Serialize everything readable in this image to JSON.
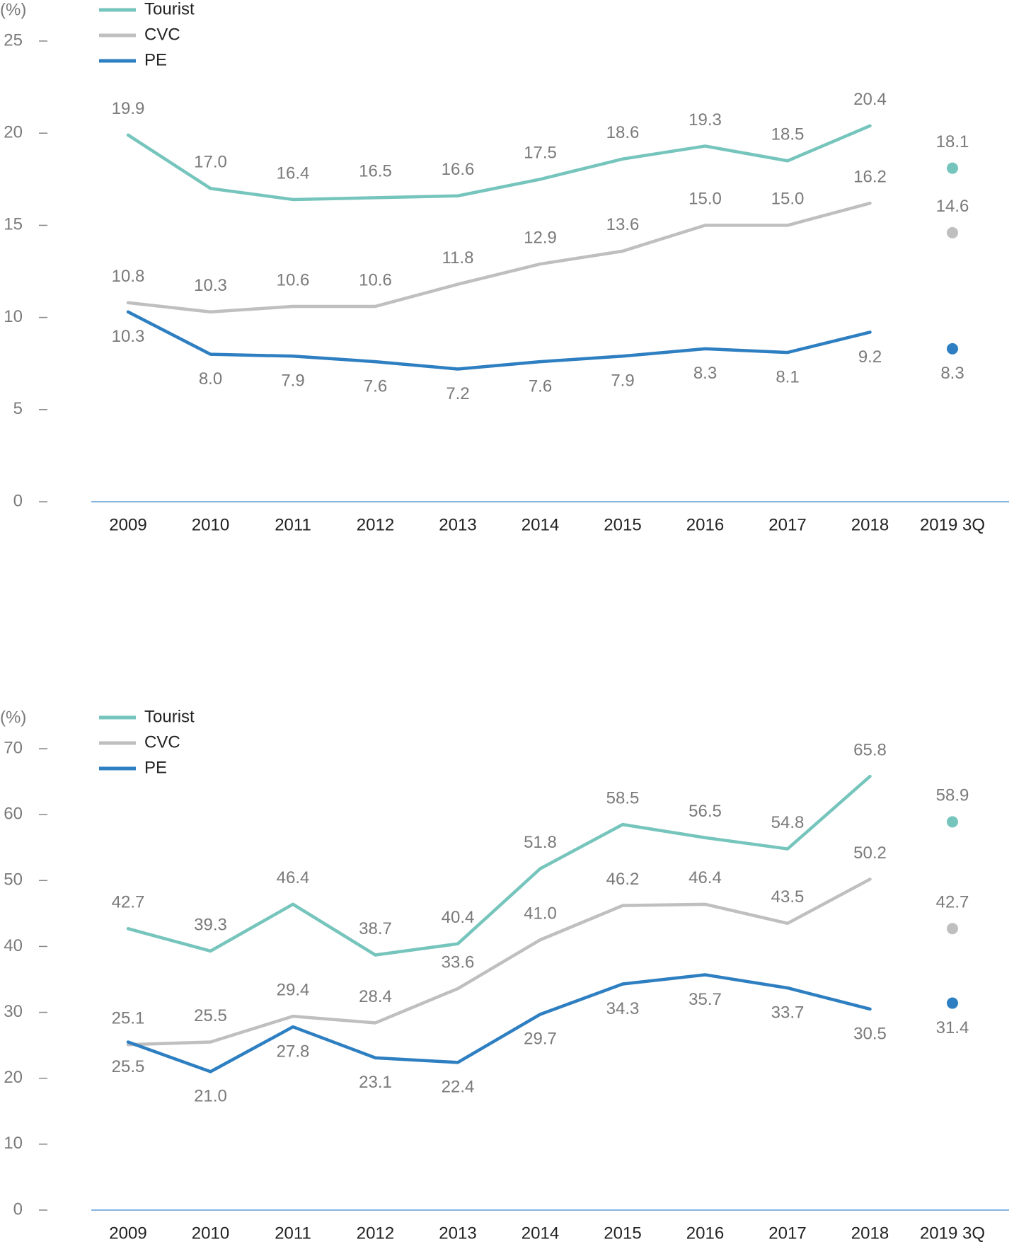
{
  "chart_data": [
    {
      "type": "line",
      "y_label": "(%)",
      "categories": [
        "2009",
        "2010",
        "2011",
        "2012",
        "2013",
        "2014",
        "2015",
        "2016",
        "2017",
        "2018",
        "2019 3Q"
      ],
      "detached_last_point": true,
      "ylim": [
        0,
        25
      ],
      "yticks": [
        0,
        5,
        10,
        15,
        20,
        25
      ],
      "series": [
        {
          "name": "Tourist",
          "color": "#76c5bd",
          "label_side": "above",
          "values": [
            19.9,
            17.0,
            16.4,
            16.5,
            16.6,
            17.5,
            18.6,
            19.3,
            18.5,
            20.4,
            18.1
          ],
          "value_labels": [
            "19.9",
            "17.0",
            "16.4",
            "16.5",
            "16.6",
            "17.5",
            "18.6",
            "19.3",
            "18.5",
            "20.4",
            "18.1"
          ]
        },
        {
          "name": "CVC",
          "color": "#bfbfbf",
          "label_side": "above",
          "values": [
            10.8,
            10.3,
            10.6,
            10.6,
            11.8,
            12.9,
            13.6,
            15.0,
            15.0,
            16.2,
            14.6
          ],
          "value_labels": [
            "10.8",
            "10.3",
            "10.6",
            "10.6",
            "11.8",
            "12.9",
            "13.6",
            "15.0",
            "15.0",
            "16.2",
            "14.6"
          ]
        },
        {
          "name": "PE",
          "color": "#2e7fc1",
          "label_side": "below",
          "values": [
            10.3,
            8.0,
            7.9,
            7.6,
            7.2,
            7.6,
            7.9,
            8.3,
            8.1,
            9.2,
            8.3
          ],
          "value_labels": [
            "10.3",
            "8.0",
            "7.9",
            "7.6",
            "7.2",
            "7.6",
            "7.9",
            "8.3",
            "8.1",
            "9.2",
            "8.3"
          ]
        }
      ]
    },
    {
      "type": "line",
      "y_label": "(%)",
      "categories": [
        "2009",
        "2010",
        "2011",
        "2012",
        "2013",
        "2014",
        "2015",
        "2016",
        "2017",
        "2018",
        "2019 3Q"
      ],
      "detached_last_point": true,
      "ylim": [
        0,
        70
      ],
      "yticks": [
        0,
        10,
        20,
        30,
        40,
        50,
        60,
        70
      ],
      "series": [
        {
          "name": "Tourist",
          "color": "#76c5bd",
          "label_side": "above",
          "values": [
            42.7,
            39.3,
            46.4,
            38.7,
            40.4,
            51.8,
            58.5,
            56.5,
            54.8,
            65.8,
            58.9
          ],
          "value_labels": [
            "42.7",
            "39.3",
            "46.4",
            "38.7",
            "40.4",
            "51.8",
            "58.5",
            "56.5",
            "54.8",
            "65.8",
            "58.9"
          ]
        },
        {
          "name": "CVC",
          "color": "#bfbfbf",
          "label_side": "above",
          "values": [
            25.1,
            25.5,
            29.4,
            28.4,
            33.6,
            41.0,
            46.2,
            46.4,
            43.5,
            50.2,
            42.7
          ],
          "value_labels": [
            "25.1",
            "25.5",
            "29.4",
            "28.4",
            "33.6",
            "41.0",
            "46.2",
            "46.4",
            "43.5",
            "50.2",
            "42.7"
          ]
        },
        {
          "name": "PE",
          "color": "#2e7fc1",
          "label_side": "below",
          "values": [
            25.5,
            21.0,
            27.8,
            23.1,
            22.4,
            29.7,
            34.3,
            35.7,
            33.7,
            30.5,
            31.4
          ],
          "value_labels": [
            "25.5",
            "21.0",
            "27.8",
            "23.1",
            "22.4",
            "29.7",
            "34.3",
            "35.7",
            "33.7",
            "30.5",
            "31.4"
          ]
        }
      ]
    }
  ]
}
